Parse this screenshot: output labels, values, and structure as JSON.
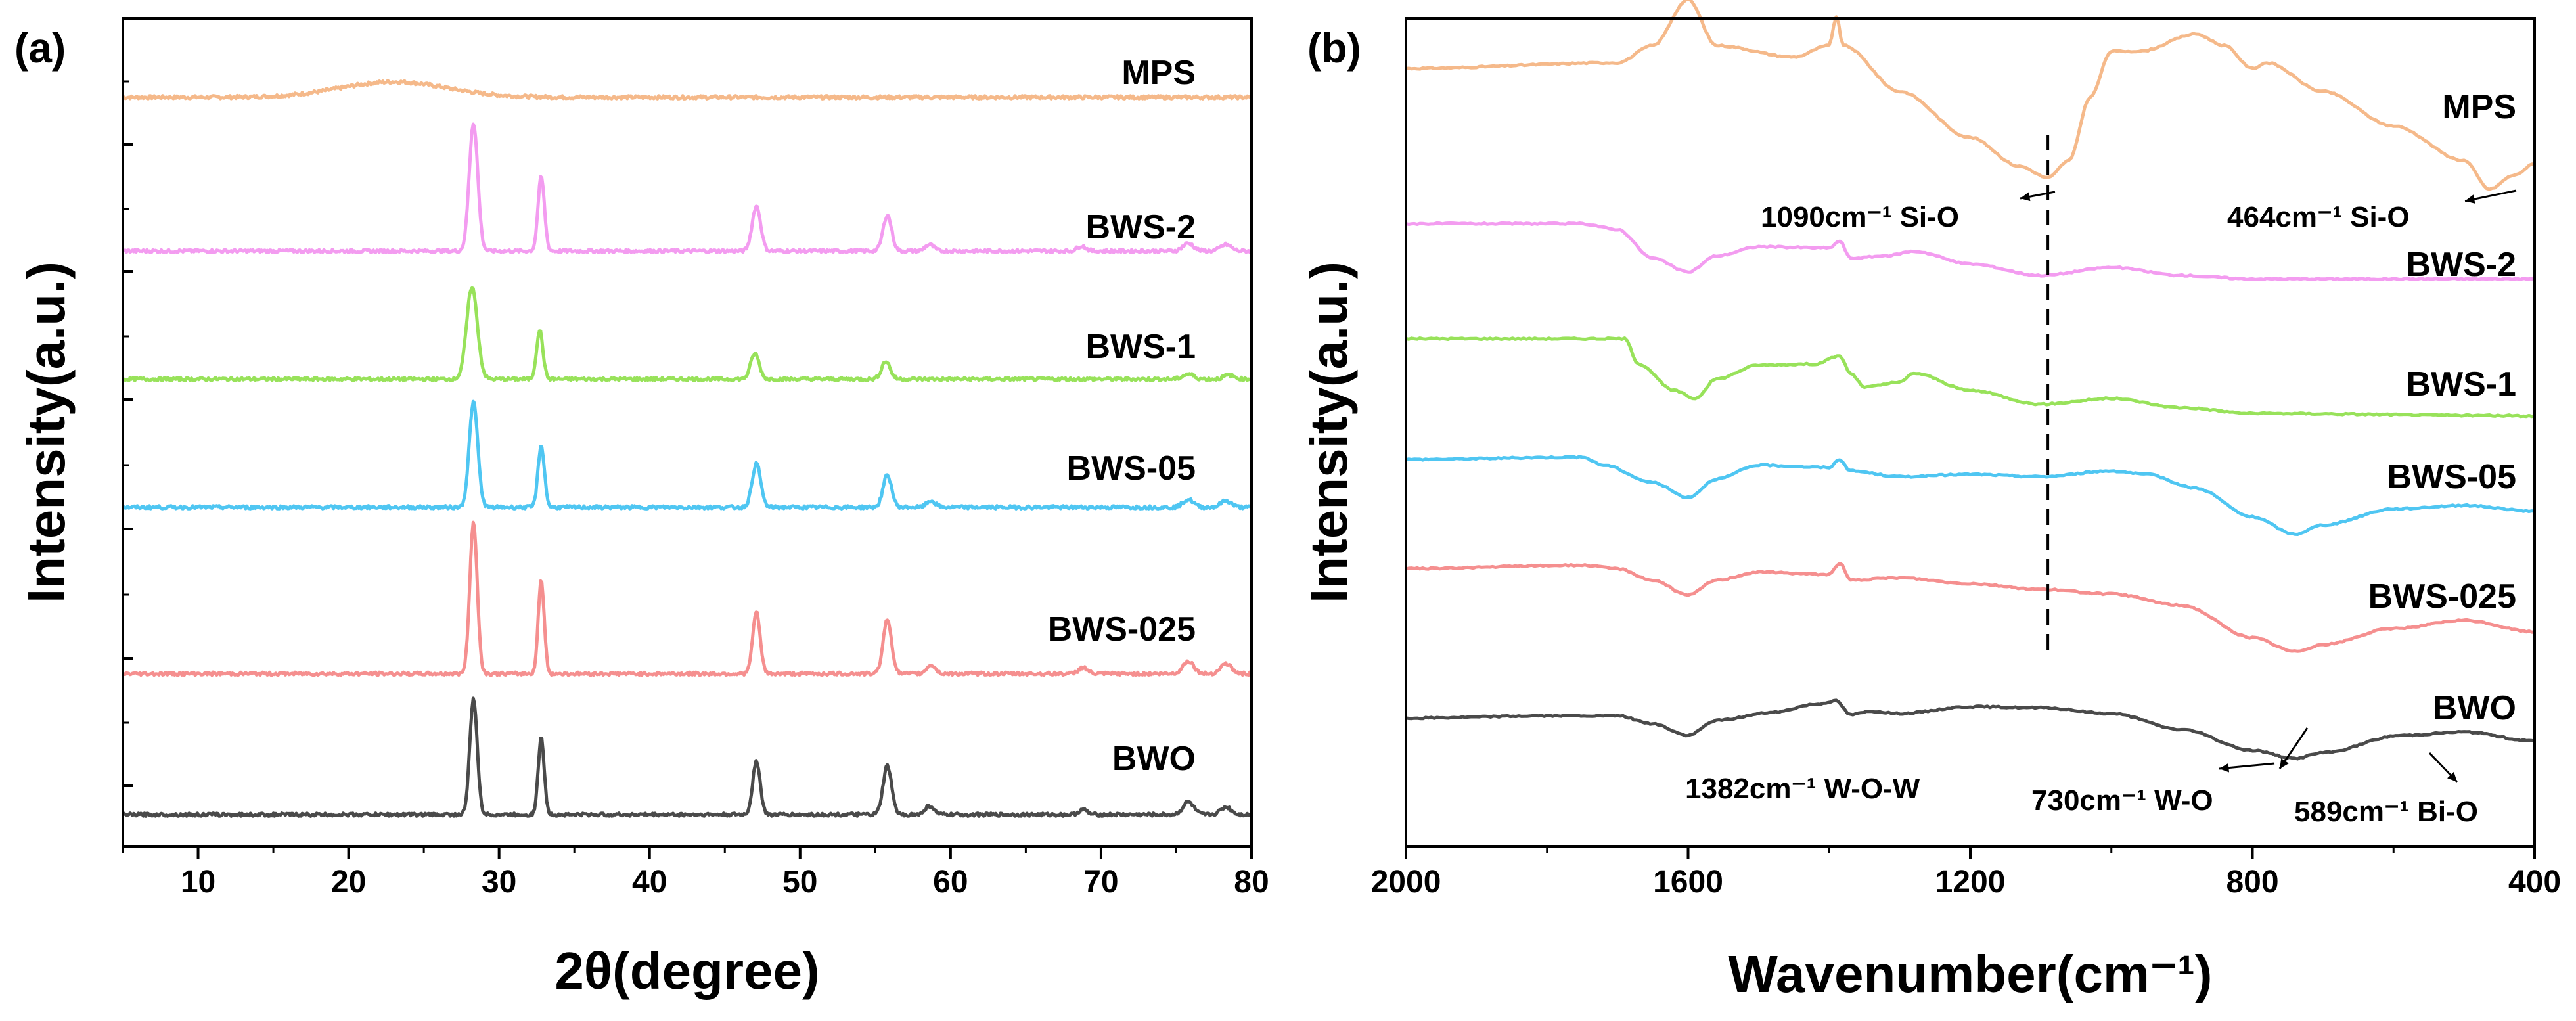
{
  "figure": {
    "panel_labels": [
      "(a)",
      "(b)"
    ]
  },
  "chart_data": [
    {
      "type": "line",
      "panel": "(a)",
      "title": "",
      "xlabel": "2θ(degree)",
      "ylabel": "Intensity(a.u.)",
      "xlim": [
        5,
        80
      ],
      "xticks": [
        10,
        20,
        30,
        40,
        50,
        60,
        70,
        80
      ],
      "x_reversed": false,
      "colors": {
        "MPS": "#f5b98a",
        "BWS-2": "#f39cf0",
        "BWS-1": "#98e25a",
        "BWS-05": "#4fc6f2",
        "BWS-025": "#f58f8f",
        "BWO": "#4a4a4a"
      },
      "series": [
        {
          "name": "MPS",
          "baseline": 6.2,
          "broad_peaks": [
            [
              23,
              0.12,
              5
            ]
          ],
          "peaks": []
        },
        {
          "name": "BWS-2",
          "baseline": 5.0,
          "peaks": [
            [
              28.3,
              1.0,
              0.4
            ],
            [
              32.8,
              0.58,
              0.3
            ],
            [
              47.1,
              0.35,
              0.4
            ],
            [
              55.8,
              0.28,
              0.4
            ],
            [
              58.6,
              0.05,
              0.4
            ],
            [
              68.7,
              0.04,
              0.4
            ],
            [
              75.8,
              0.06,
              0.5
            ],
            [
              78.3,
              0.05,
              0.5
            ]
          ]
        },
        {
          "name": "BWS-1",
          "baseline": 4.0,
          "peaks": [
            [
              28.2,
              0.72,
              0.5
            ],
            [
              32.7,
              0.38,
              0.3
            ],
            [
              47.0,
              0.2,
              0.4
            ],
            [
              55.7,
              0.14,
              0.4
            ],
            [
              75.8,
              0.04,
              0.5
            ],
            [
              78.5,
              0.03,
              0.5
            ]
          ]
        },
        {
          "name": "BWS-05",
          "baseline": 3.0,
          "peaks": [
            [
              28.3,
              0.82,
              0.4
            ],
            [
              32.8,
              0.48,
              0.3
            ],
            [
              47.1,
              0.34,
              0.4
            ],
            [
              55.8,
              0.25,
              0.4
            ],
            [
              58.7,
              0.05,
              0.4
            ],
            [
              75.8,
              0.06,
              0.5
            ],
            [
              78.3,
              0.05,
              0.5
            ]
          ]
        },
        {
          "name": "BWS-025",
          "baseline": 1.7,
          "peaks": [
            [
              28.3,
              1.18,
              0.35
            ],
            [
              32.8,
              0.73,
              0.28
            ],
            [
              47.1,
              0.48,
              0.35
            ],
            [
              55.8,
              0.42,
              0.4
            ],
            [
              58.7,
              0.07,
              0.4
            ],
            [
              68.8,
              0.05,
              0.4
            ],
            [
              75.8,
              0.1,
              0.5
            ],
            [
              78.3,
              0.08,
              0.5
            ]
          ]
        },
        {
          "name": "BWO",
          "baseline": 0.6,
          "peaks": [
            [
              28.3,
              0.9,
              0.35
            ],
            [
              32.8,
              0.6,
              0.28
            ],
            [
              47.1,
              0.42,
              0.35
            ],
            [
              55.8,
              0.38,
              0.4
            ],
            [
              58.6,
              0.07,
              0.4
            ],
            [
              68.8,
              0.04,
              0.4
            ],
            [
              75.8,
              0.1,
              0.5
            ],
            [
              78.3,
              0.06,
              0.5
            ]
          ]
        }
      ],
      "series_labels": [
        "MPS",
        "BWS-2",
        "BWS-1",
        "BWS-05",
        "BWS-025",
        "BWO"
      ]
    },
    {
      "type": "line",
      "panel": "(b)",
      "title": "",
      "xlabel": "Wavenumber(cm⁻¹)",
      "ylabel": "Intensity(a.u.)",
      "xlim": [
        2000,
        400
      ],
      "xticks": [
        2000,
        1600,
        1200,
        800,
        400
      ],
      "x_reversed": true,
      "colors": {
        "MPS": "#f5b98a",
        "BWS-2": "#f39cf0",
        "BWS-1": "#98e25a",
        "BWS-05": "#4fc6f2",
        "BWS-025": "#f58f8f",
        "BWO": "#4a4a4a"
      },
      "series": [
        {
          "name": "MPS",
          "points": [
            [
              2000,
              6.35
            ],
            [
              1700,
              6.4
            ],
            [
              1650,
              6.55
            ],
            [
              1600,
              6.95
            ],
            [
              1560,
              6.55
            ],
            [
              1450,
              6.45
            ],
            [
              1400,
              6.55
            ],
            [
              1390,
              6.8
            ],
            [
              1380,
              6.55
            ],
            [
              1300,
              6.15
            ],
            [
              1200,
              5.75
            ],
            [
              1130,
              5.5
            ],
            [
              1090,
              5.4
            ],
            [
              1060,
              5.55
            ],
            [
              1030,
              6.1
            ],
            [
              1000,
              6.5
            ],
            [
              960,
              6.5
            ],
            [
              880,
              6.65
            ],
            [
              840,
              6.55
            ],
            [
              800,
              6.35
            ],
            [
              780,
              6.4
            ],
            [
              700,
              6.15
            ],
            [
              600,
              5.85
            ],
            [
              500,
              5.55
            ],
            [
              464,
              5.3
            ],
            [
              430,
              5.42
            ],
            [
              400,
              5.52
            ]
          ]
        },
        {
          "name": "BWS-2",
          "points": [
            [
              2000,
              5.0
            ],
            [
              1750,
              5.0
            ],
            [
              1700,
              4.95
            ],
            [
              1650,
              4.7
            ],
            [
              1600,
              4.58
            ],
            [
              1560,
              4.72
            ],
            [
              1500,
              4.8
            ],
            [
              1400,
              4.79
            ],
            [
              1385,
              4.85
            ],
            [
              1370,
              4.7
            ],
            [
              1320,
              4.72
            ],
            [
              1280,
              4.76
            ],
            [
              1200,
              4.65
            ],
            [
              1100,
              4.55
            ],
            [
              1000,
              4.62
            ],
            [
              900,
              4.55
            ],
            [
              800,
              4.52
            ],
            [
              400,
              4.52
            ]
          ]
        },
        {
          "name": "BWS-1",
          "points": [
            [
              2000,
              4.0
            ],
            [
              1690,
              4.0
            ],
            [
              1670,
              3.78
            ],
            [
              1620,
              3.55
            ],
            [
              1590,
              3.48
            ],
            [
              1560,
              3.65
            ],
            [
              1500,
              3.77
            ],
            [
              1420,
              3.78
            ],
            [
              1385,
              3.85
            ],
            [
              1370,
              3.7
            ],
            [
              1350,
              3.58
            ],
            [
              1300,
              3.62
            ],
            [
              1280,
              3.7
            ],
            [
              1200,
              3.55
            ],
            [
              1100,
              3.43
            ],
            [
              1000,
              3.48
            ],
            [
              900,
              3.4
            ],
            [
              800,
              3.35
            ],
            [
              400,
              3.33
            ]
          ]
        },
        {
          "name": "BWS-05",
          "points": [
            [
              2000,
              2.95
            ],
            [
              1750,
              2.97
            ],
            [
              1720,
              2.9
            ],
            [
              1650,
              2.75
            ],
            [
              1600,
              2.62
            ],
            [
              1560,
              2.78
            ],
            [
              1500,
              2.9
            ],
            [
              1400,
              2.88
            ],
            [
              1385,
              2.95
            ],
            [
              1370,
              2.85
            ],
            [
              1300,
              2.8
            ],
            [
              1200,
              2.82
            ],
            [
              1100,
              2.8
            ],
            [
              1000,
              2.85
            ],
            [
              950,
              2.82
            ],
            [
              880,
              2.7
            ],
            [
              800,
              2.45
            ],
            [
              740,
              2.3
            ],
            [
              700,
              2.38
            ],
            [
              600,
              2.52
            ],
            [
              500,
              2.55
            ],
            [
              400,
              2.5
            ]
          ]
        },
        {
          "name": "BWS-025",
          "points": [
            [
              2000,
              2.0
            ],
            [
              1750,
              2.03
            ],
            [
              1700,
              2.0
            ],
            [
              1650,
              1.9
            ],
            [
              1600,
              1.77
            ],
            [
              1560,
              1.9
            ],
            [
              1500,
              1.97
            ],
            [
              1400,
              1.95
            ],
            [
              1385,
              2.05
            ],
            [
              1370,
              1.9
            ],
            [
              1300,
              1.92
            ],
            [
              1200,
              1.87
            ],
            [
              1100,
              1.82
            ],
            [
              1000,
              1.78
            ],
            [
              900,
              1.68
            ],
            [
              800,
              1.4
            ],
            [
              740,
              1.28
            ],
            [
              700,
              1.34
            ],
            [
              600,
              1.48
            ],
            [
              500,
              1.55
            ],
            [
              400,
              1.45
            ]
          ]
        },
        {
          "name": "BWO",
          "points": [
            [
              2000,
              0.7
            ],
            [
              1800,
              0.72
            ],
            [
              1700,
              0.72
            ],
            [
              1650,
              0.65
            ],
            [
              1600,
              0.55
            ],
            [
              1560,
              0.68
            ],
            [
              1480,
              0.75
            ],
            [
              1420,
              0.82
            ],
            [
              1390,
              0.85
            ],
            [
              1370,
              0.73
            ],
            [
              1340,
              0.76
            ],
            [
              1300,
              0.74
            ],
            [
              1200,
              0.8
            ],
            [
              1100,
              0.79
            ],
            [
              1000,
              0.74
            ],
            [
              900,
              0.6
            ],
            [
              800,
              0.42
            ],
            [
              740,
              0.35
            ],
            [
              700,
              0.4
            ],
            [
              589,
              0.55
            ],
            [
              500,
              0.58
            ],
            [
              400,
              0.5
            ]
          ]
        }
      ],
      "series_labels": [
        "MPS",
        "BWS-2",
        "BWS-1",
        "BWS-05",
        "BWS-025",
        "BWO"
      ],
      "annotations": [
        {
          "text": "1090cm⁻¹ Si-O",
          "at": 1090,
          "y": 5.4
        },
        {
          "text": "464cm⁻¹ Si-O",
          "at": 464,
          "y": 5.3
        },
        {
          "text": "1382cm⁻¹ W-O-W",
          "at": 1382,
          "y": 0.85
        },
        {
          "text": "730cm⁻¹ W-O",
          "at": 730,
          "y": 0.35
        },
        {
          "text": "589cm⁻¹ Bi-O",
          "at": 589,
          "y": 0.55
        }
      ],
      "reference_line_at": 1090
    }
  ]
}
